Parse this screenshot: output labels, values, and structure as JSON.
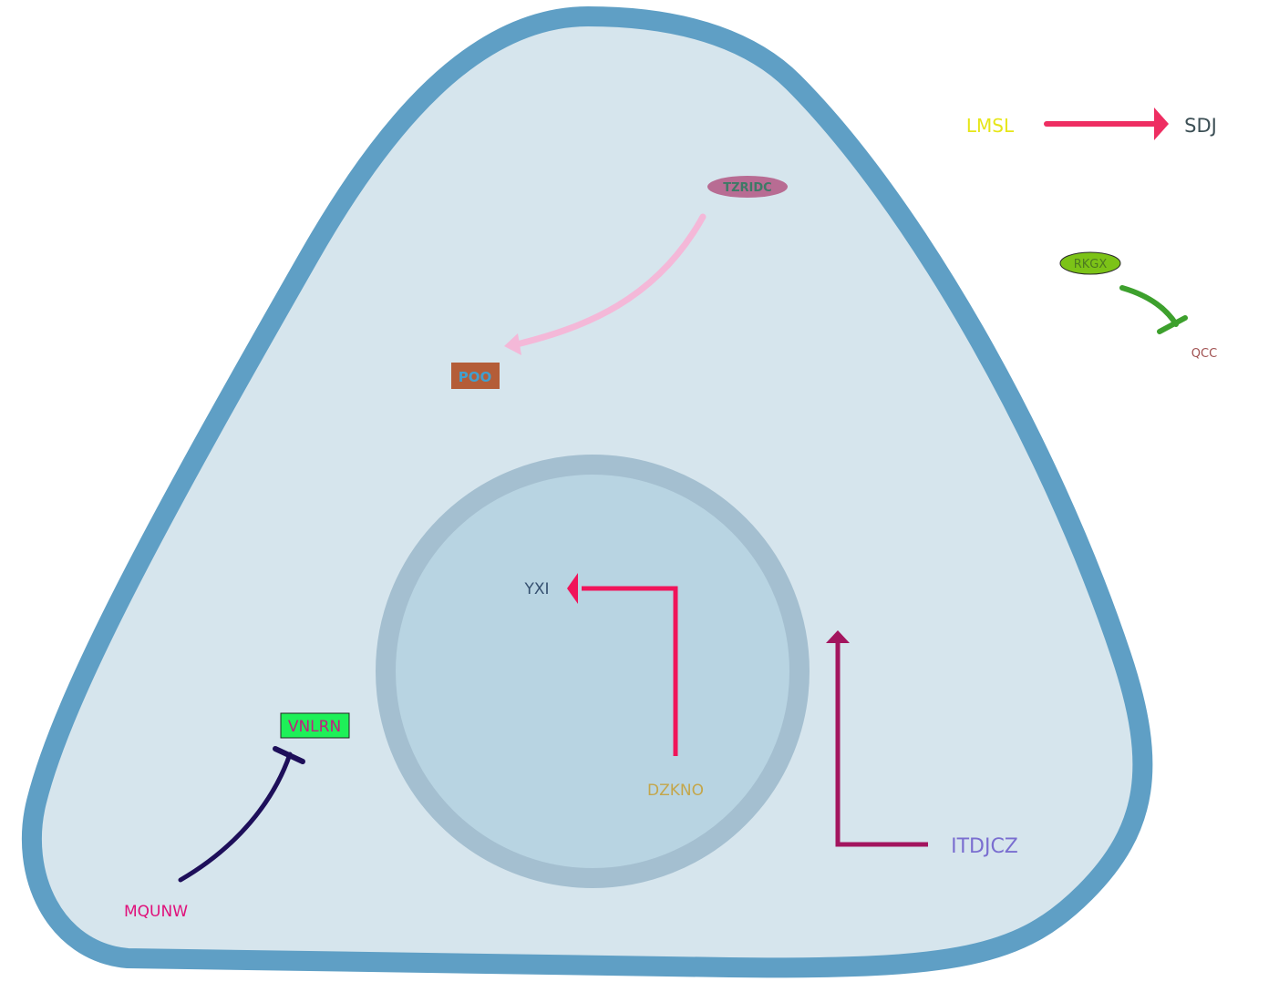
{
  "colors": {
    "cell_fill": "#d6e5ed",
    "cell_stroke": "#5f9fc5",
    "nucleus_fill": "#b8d4e2",
    "nucleus_stroke": "#a4bfd0"
  },
  "nodes": {
    "lmsl": {
      "label": "LMSL",
      "color": "#e6e619",
      "shape": "text"
    },
    "sdj": {
      "label": "SDJ",
      "color": "#3c4f55",
      "shape": "text"
    },
    "tzridc": {
      "label": "TZRIDC",
      "color": "#3d7a66",
      "fill": "#b86c93",
      "shape": "ellipse"
    },
    "poo": {
      "label": "POO",
      "color": "#40a0d0",
      "fill": "#b45d38",
      "shape": "rect"
    },
    "rkgx": {
      "label": "RKGX",
      "color": "#4d7a20",
      "fill": "#7cc317",
      "shape": "ellipse"
    },
    "qcc": {
      "label": "QCC",
      "color": "#a05050",
      "shape": "text"
    },
    "yxi": {
      "label": "YXI",
      "color": "#355070",
      "shape": "text"
    },
    "dzkno": {
      "label": "DZKNO",
      "color": "#c4a64a",
      "shape": "text"
    },
    "vnlrn": {
      "label": "VNLRN",
      "color": "#c02080",
      "fill": "#1ef058",
      "shape": "rect"
    },
    "mqunw": {
      "label": "MQUNW",
      "color": "#e0107a",
      "shape": "text"
    },
    "itdjcz": {
      "label": "ITDJCZ",
      "color": "#7a6ed0",
      "shape": "text"
    },
    "pale_label": {
      "label": "",
      "color": "#e0f7f8",
      "shape": "text"
    }
  },
  "edges": [
    {
      "from": "lmsl",
      "to": "sdj",
      "type": "activation",
      "color": "#ee2e62"
    },
    {
      "from": "tzridc",
      "to": "poo",
      "type": "activation",
      "color": "#f4b8d8"
    },
    {
      "from": "rkgx",
      "to": "qcc",
      "type": "inhibition",
      "color": "#3da02d"
    },
    {
      "from": "dzkno",
      "to": "yxi",
      "type": "activation",
      "color": "#f0145a"
    },
    {
      "from": "mqunw",
      "to": "vnlrn",
      "type": "inhibition",
      "color": "#1e0f5a"
    },
    {
      "from": "itdjcz",
      "to": "pale_label",
      "type": "activation",
      "color": "#a3155e"
    }
  ]
}
